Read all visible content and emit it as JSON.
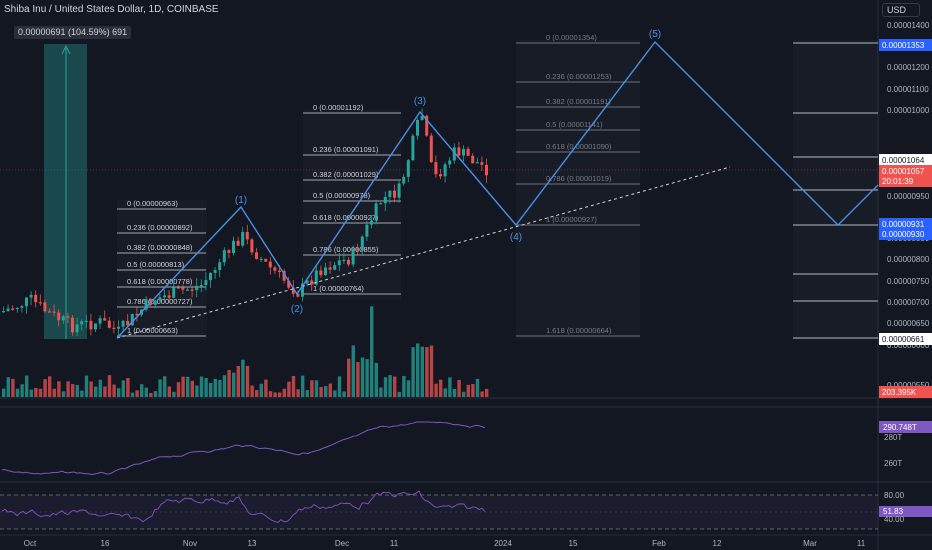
{
  "header": {
    "symbol_title": "Shiba Inu / United States Dollar, 1D, COINBASE",
    "currency": "USD"
  },
  "measure_label": "0.00000691 (104.59%) 691",
  "price_axis": {
    "ticks": [
      "0.00001400",
      "0.00001300",
      "0.00001200",
      "0.00001100",
      "0.00001000",
      "0.00000950",
      "0.00000850",
      "0.00000800",
      "0.00000750",
      "0.00000700",
      "0.00000650",
      "0.00000600",
      "0.00000550"
    ],
    "badges": {
      "target": "0.00001353",
      "level_top": "0.00001064",
      "last_price": "0.00001057",
      "countdown": "20:01:39",
      "support_a": "0.00000931",
      "support_b": "0.00000930",
      "low": "0.00000661",
      "volume": "203.395K"
    }
  },
  "time_axis": [
    "Oct",
    "16",
    "Nov",
    "13",
    "Dec",
    "11",
    "2024",
    "15",
    "Feb",
    "12",
    "Mar",
    "11"
  ],
  "wave_labels": [
    "(1)",
    "(2)",
    "(3)",
    "(4)",
    "(5)"
  ],
  "fib_sets": [
    {
      "name": "fib-1",
      "levels": [
        "0 (0.00000963)",
        "0.236 (0.00000892)",
        "0.382 (0.00000848)",
        "0.5 (0.00000813)",
        "0.618 (0.00000778)",
        "0.786 (0.00000727)",
        "1 (0.00000663)"
      ]
    },
    {
      "name": "fib-2",
      "levels": [
        "0 (0.00001192)",
        "0.236 (0.00001091)",
        "0.382 (0.00001029)",
        "0.5 (0.00000978)",
        "0.618 (0.00000927)",
        "0.786 (0.00000855)",
        "1 (0.00000764)"
      ]
    },
    {
      "name": "fib-3",
      "levels": [
        "0 (0.00001354)",
        "0.236 (0.00001253)",
        "0.382 (0.00001191)",
        "0.5 (0.00001141)",
        "0.618 (0.00001090)",
        "0.786 (0.00001019)",
        "1 (0.00000927)",
        "1.618 (0.00000664)"
      ]
    }
  ],
  "indicator_1": {
    "value": "290.748T",
    "ticks": [
      "280T",
      "260T"
    ]
  },
  "indicator_2": {
    "value": "51.83",
    "ticks": [
      "80.00",
      "40.00"
    ]
  },
  "colors": {
    "bg": "#131722",
    "up": "#26a69a",
    "down": "#ef5350",
    "fib": "#b2b5be",
    "wave": "#4a90e2",
    "obv": "#7e57c2",
    "rsi": "#7e57c2",
    "badge_blue": "#2962ff"
  },
  "chart_data": {
    "type": "line",
    "title": "Shiba Inu / United States Dollar, 1D, COINBASE",
    "ylabel": "USD",
    "ylim": [
      5.2e-06,
      1.42e-05
    ],
    "elliott_wave": [
      {
        "label": "(1)",
        "price": 9.63e-06
      },
      {
        "label": "(2)",
        "price": 7.64e-06
      },
      {
        "label": "(3)",
        "price": 1.192e-05
      },
      {
        "label": "(4)",
        "price": 9.27e-06
      },
      {
        "label": "(5)",
        "price": 1.354e-05
      }
    ],
    "last_price": 1.057e-05,
    "measure_pct": 104.59
  }
}
